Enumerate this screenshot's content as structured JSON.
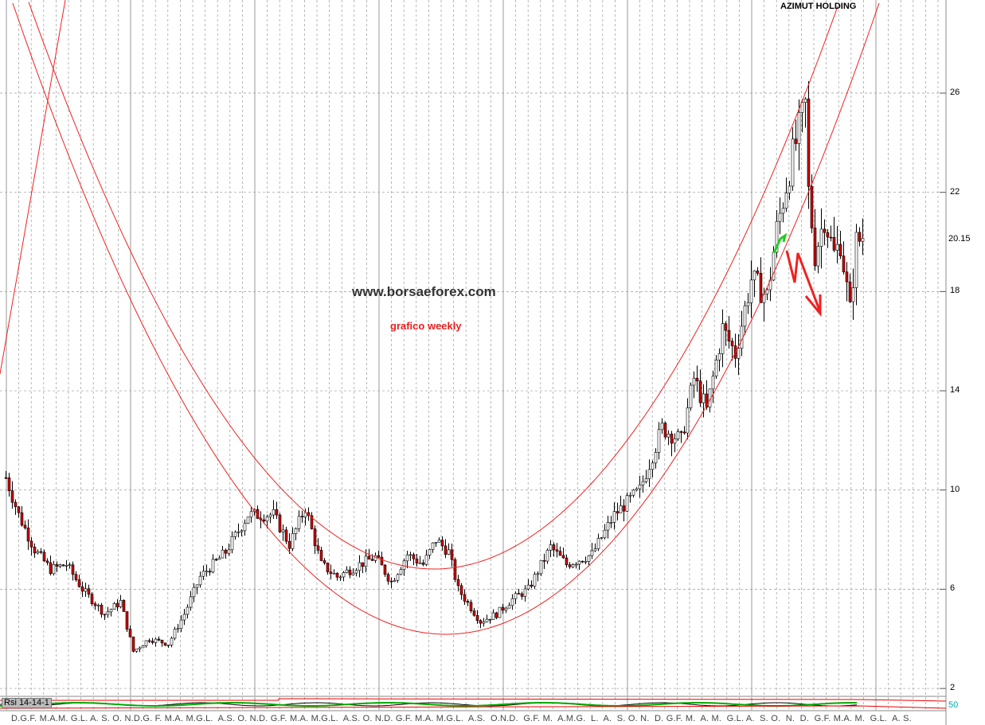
{
  "header": {
    "title": "AZIMUT HOLDING"
  },
  "watermark": "www.borsaeforex.com",
  "subtitle": "grafico weekly",
  "rsi": {
    "label": "Rsi 14-14-1",
    "level_label": "50"
  },
  "last_price_label": "20.15",
  "x_axis_months": "D.G.F. M.A.M. G.L. A. S. O. N.D.G. F. M.A. M.G.L.  A.S. O. N.D. G.F. M.A. M.G.L.  A.S. O. N.D. G.F. M.A. M.G.L.  A.S.  O.N.D.  G.F. M.  A.M.G.  L.  A.  S. O. N.  D. G.F. M.  A. M.  G.L. A.  S. O.  N.  D.  G.F. M.A. M.  G.L.  A. S.",
  "colors": {
    "up": "#ffffff",
    "down": "#cc0000",
    "curve": "#ee2222",
    "grid": "#999999"
  },
  "chart_data": {
    "type": "candlestick",
    "title": "AZIMUT HOLDING",
    "period": "weekly",
    "y_ticks": [
      2,
      6,
      10,
      14,
      18,
      22,
      26
    ],
    "y_tick_labels": [
      "2",
      "6",
      "10",
      "14",
      "18",
      "22",
      "26"
    ],
    "ylim": [
      1,
      29
    ],
    "close_anchors": {
      "week": [
        0,
        4,
        9,
        14,
        19,
        24,
        31,
        36,
        40,
        45,
        51,
        56,
        61,
        69,
        76,
        84,
        89,
        94,
        99,
        104,
        111,
        116,
        121,
        126,
        131,
        135,
        139,
        142,
        149,
        154,
        159,
        164,
        171,
        176,
        184,
        191,
        199,
        206,
        212,
        216,
        220,
        225,
        229,
        234,
        239,
        242,
        247,
        251,
        252,
        254,
        257,
        260,
        262,
        265,
        267,
        269
      ],
      "close": [
        10.5,
        9,
        7.6,
        6.8,
        7,
        6,
        5,
        5.5,
        3.5,
        4,
        3.8,
        5,
        6.5,
        7.5,
        9,
        9,
        7.8,
        9.3,
        7,
        6.5,
        7,
        7.3,
        6.3,
        7.4,
        7,
        8,
        7.5,
        6,
        4.7,
        5,
        5.6,
        6,
        7.7,
        7,
        7.4,
        9,
        10,
        12.5,
        12,
        14.5,
        13.2,
        16.5,
        15.5,
        18.5,
        17.8,
        20.5,
        23.5,
        25.5,
        22,
        19.5,
        21,
        19.5,
        20,
        17.2,
        20,
        20.15
      ]
    },
    "last_close": 20.15
  }
}
